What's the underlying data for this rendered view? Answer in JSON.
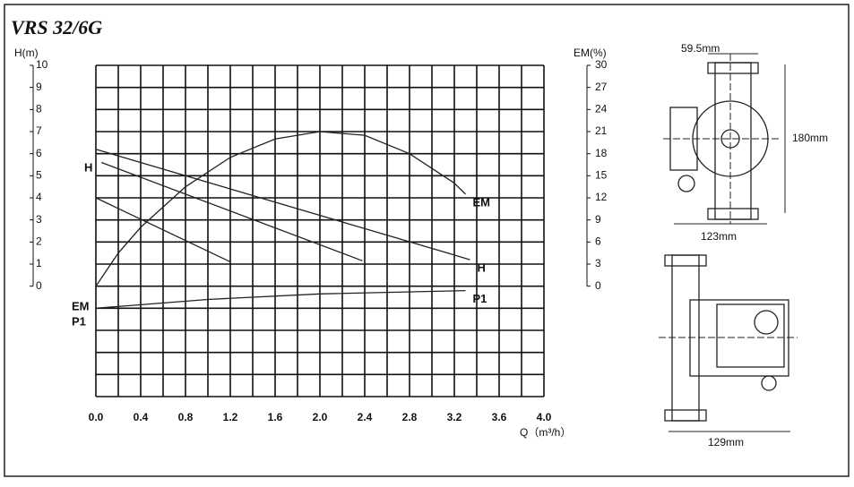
{
  "chart_data": {
    "type": "line",
    "title": "VRS 32/6G",
    "ylabel": "H(m)",
    "y2label": "EM(%)",
    "xlabel": "Q（m³/h）",
    "xlim": [
      0,
      4
    ],
    "xticks": [
      {
        "value": 0,
        "label": "0.0"
      },
      0.4,
      0.8,
      1.2,
      1.6,
      {
        "value": 2,
        "label": "2.0"
      },
      2.4,
      2.8,
      3.2,
      3.6,
      {
        "value": 4,
        "label": "4.0"
      }
    ],
    "ylim": [
      -5,
      10
    ],
    "yticks": [
      0,
      1,
      2,
      3,
      4,
      5,
      6,
      7,
      8,
      9,
      10
    ],
    "y2lim": [
      -15,
      30
    ],
    "y2ticks": [
      0,
      3,
      6,
      9,
      12,
      15,
      18,
      21,
      24,
      27,
      30
    ],
    "grid": true,
    "color": "#222222",
    "series": [
      {
        "name": "H",
        "x": [
          0,
          3.34
        ],
        "values": [
          6.2,
          1.2
        ]
      },
      {
        "x": [
          0.05,
          2.38
        ],
        "values": [
          5.6,
          1.15
        ]
      },
      {
        "x": [
          0,
          1.2
        ],
        "values": [
          4.0,
          1.1
        ]
      },
      {
        "name": "EM",
        "axis": "y2",
        "x": [
          0,
          0.2,
          0.4,
          0.8,
          1.2,
          1.6,
          2.0,
          2.4,
          2.8,
          3.2,
          3.3
        ],
        "values": [
          0,
          4.5,
          8,
          13.5,
          17.5,
          20,
          21,
          20.5,
          18,
          14,
          12.5
        ]
      },
      {
        "name": "P1",
        "x": [
          0,
          1,
          2,
          3.3
        ],
        "values": [
          -1.0,
          -0.6,
          -0.35,
          -0.2
        ]
      }
    ],
    "annotations": [
      "H",
      "EM",
      "P1"
    ],
    "dimensions": [
      "59.5mm",
      "180mm",
      "123mm",
      "129mm"
    ]
  }
}
